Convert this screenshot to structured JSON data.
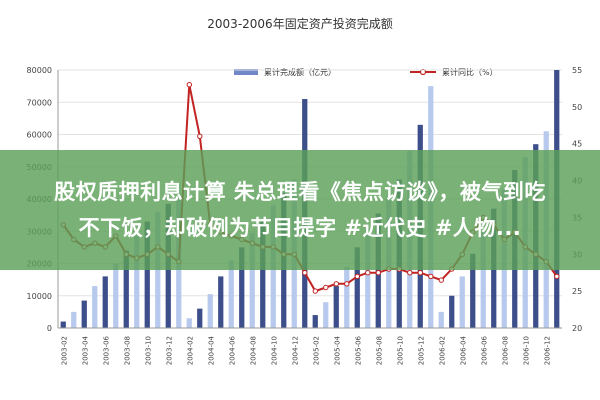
{
  "chart_data": {
    "type": "bar+line",
    "title": "2003-2006年固定资产投资完成额",
    "legend_position": "top",
    "colors": {
      "bars_dark": "#3d4f8a",
      "bars_light": "#b7c9ec",
      "line": "#c22323",
      "grid": "#e3e3e3"
    },
    "left_axis": {
      "min": 0,
      "max": 80000,
      "ticks": [
        "80000",
        "70000",
        "60000",
        "50000",
        "40000",
        "30000",
        "20000",
        "10000",
        "0"
      ]
    },
    "right_axis": {
      "min": 20,
      "max": 55,
      "ticks": [
        "55",
        "50",
        "45",
        "40",
        "35",
        "30",
        "25",
        "20"
      ]
    },
    "x_tick_labels": [
      "2003-02",
      "2003-04",
      "2003-06",
      "2003-08",
      "2003-10",
      "2003-12",
      "2004-02",
      "2004-04",
      "2004-06",
      "2004-08",
      "2004-10",
      "2004-12",
      "2005-02",
      "2005-04",
      "2005-06",
      "2005-08",
      "2005-10",
      "2005-12",
      "2006-02",
      "2006-04",
      "2006-06",
      "2006-08",
      "2006-10",
      "2006-12"
    ],
    "series": [
      {
        "name": "累计完成额（亿元）",
        "axis": "left",
        "values": [
          2000,
          5000,
          8500,
          13000,
          16000,
          20000,
          24000,
          28500,
          33000,
          36000,
          38500,
          40000,
          3000,
          6000,
          10500,
          16000,
          21000,
          25000,
          29500,
          33500,
          38000,
          42000,
          46000,
          71000,
          4000,
          8000,
          13000,
          19000,
          25000,
          30500,
          35500,
          40500,
          46000,
          55000,
          63000,
          75000,
          5000,
          10000,
          16000,
          23000,
          30000,
          37000,
          43000,
          49000,
          53000,
          57000,
          61000,
          80000
        ]
      },
      {
        "name": "累计同比（%）",
        "axis": "right",
        "values": [
          34,
          32,
          31,
          31.5,
          31,
          32.5,
          30,
          29.5,
          30,
          31,
          30,
          29,
          53,
          46,
          34,
          33,
          32.5,
          32,
          31.5,
          31,
          31,
          30,
          30,
          27.5,
          25,
          25.5,
          26,
          26,
          27,
          27.5,
          27.5,
          28,
          28,
          27.5,
          27.5,
          27,
          26.5,
          28,
          30,
          33,
          35,
          34,
          32,
          33,
          31,
          30,
          29,
          27
        ]
      }
    ]
  },
  "overlay": {
    "line1": "股权质押利息计算 朱总理看《焦点访谈》，被气到吃",
    "line2": "不下饭，却破例为节目提字 #近代史 #人物..."
  }
}
